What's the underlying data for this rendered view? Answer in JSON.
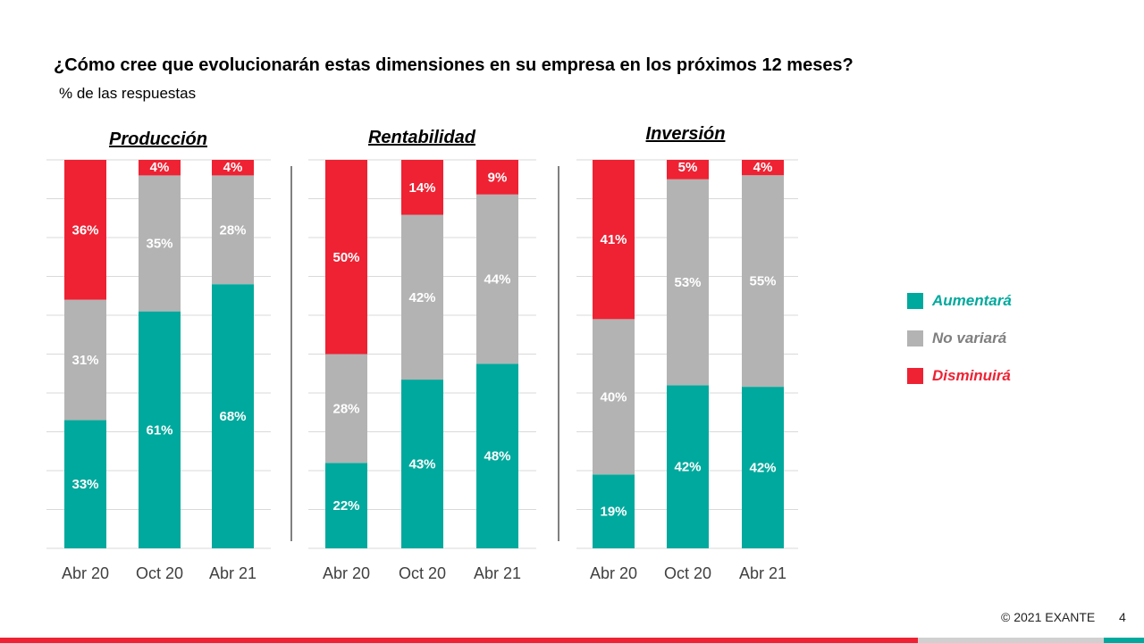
{
  "title": "¿Cómo cree que evolucionarán estas dimensiones en su empresa en los próximos 12 meses?",
  "subtitle": "% de las respuestas",
  "colors": {
    "aumentara": "#00A99D",
    "no_variara": "#B3B3B3",
    "disminuira": "#EE2233",
    "grid": "#D9D9D9",
    "axis_text": "#404040",
    "footer_red": "#EE2233",
    "footer_gray": "#D0D0D0",
    "footer_teal": "#00A99D"
  },
  "legend": [
    {
      "key": "aumentara",
      "label": "Aumentará"
    },
    {
      "key": "no_variara",
      "label": "No variará"
    },
    {
      "key": "disminuira",
      "label": "Disminuirá"
    }
  ],
  "footer": {
    "copyright": "© 2021 EXANTE",
    "page": "4"
  },
  "chart_data": [
    {
      "type": "bar",
      "stacked": true,
      "title": "Producción",
      "categories": [
        "Abr 20",
        "Oct 20",
        "Abr 21"
      ],
      "series": [
        {
          "name": "Aumentará",
          "values": [
            33,
            61,
            68
          ]
        },
        {
          "name": "No variará",
          "values": [
            31,
            35,
            28
          ]
        },
        {
          "name": "Disminuirá",
          "values": [
            36,
            4,
            4
          ]
        }
      ],
      "ylim": [
        0,
        100
      ],
      "grid": true
    },
    {
      "type": "bar",
      "stacked": true,
      "title": "Rentabilidad",
      "categories": [
        "Abr 20",
        "Oct 20",
        "Abr 21"
      ],
      "series": [
        {
          "name": "Aumentará",
          "values": [
            22,
            43,
            48
          ]
        },
        {
          "name": "No variará",
          "values": [
            28,
            42,
            44
          ]
        },
        {
          "name": "Disminuirá",
          "values": [
            50,
            14,
            9
          ]
        }
      ],
      "ylim": [
        0,
        100
      ],
      "grid": true
    },
    {
      "type": "bar",
      "stacked": true,
      "title": "Inversión",
      "categories": [
        "Abr 20",
        "Oct 20",
        "Abr 21"
      ],
      "series": [
        {
          "name": "Aumentará",
          "values": [
            19,
            42,
            42
          ]
        },
        {
          "name": "No variará",
          "values": [
            40,
            53,
            55
          ]
        },
        {
          "name": "Disminuirá",
          "values": [
            41,
            5,
            4
          ]
        }
      ],
      "ylim": [
        0,
        100
      ],
      "grid": true
    }
  ]
}
